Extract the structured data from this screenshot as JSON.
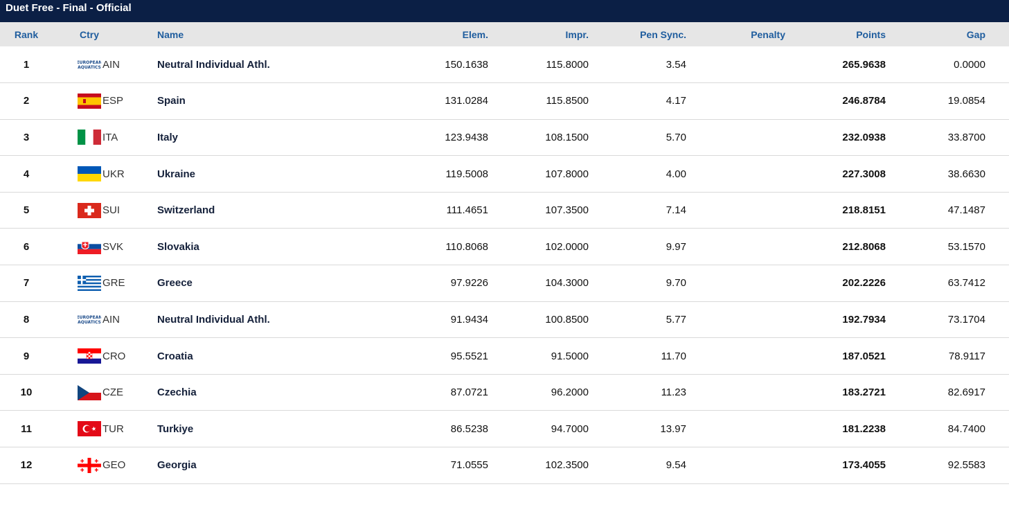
{
  "title": "Duet Free - Final  -  Official",
  "columns": {
    "rank": "Rank",
    "ctry": "Ctry",
    "name": "Name",
    "elem": "Elem.",
    "impr": "Impr.",
    "pen_sync": "Pen Sync.",
    "penalty": "Penalty",
    "points": "Points",
    "gap": "Gap"
  },
  "flag_colors": {
    "AIN": "#ffffff",
    "ESP": "#c60b1e",
    "ITA": "#009246",
    "UKR": "#0057b7",
    "SUI": "#da291c",
    "SVK": "#0b4ea2",
    "GRE": "#0d5eaf",
    "CRO": "#ff0000",
    "CZE": "#11457e",
    "TUR": "#e30a17",
    "GEO": "#ff0000"
  },
  "rows": [
    {
      "rank": "1",
      "code": "AIN",
      "flag_icon": "ain-logo-icon",
      "ain_logo_text": "EUROPEAN AQUATICS",
      "name": "Neutral Individual Athl.",
      "elem": "150.1638",
      "impr": "115.8000",
      "pen_sync": "3.54",
      "penalty": "",
      "points": "265.9638",
      "gap": "0.0000"
    },
    {
      "rank": "2",
      "code": "ESP",
      "flag_icon": "spain-flag-icon",
      "name": "Spain",
      "elem": "131.0284",
      "impr": "115.8500",
      "pen_sync": "4.17",
      "penalty": "",
      "points": "246.8784",
      "gap": "19.0854"
    },
    {
      "rank": "3",
      "code": "ITA",
      "flag_icon": "italy-flag-icon",
      "name": "Italy",
      "elem": "123.9438",
      "impr": "108.1500",
      "pen_sync": "5.70",
      "penalty": "",
      "points": "232.0938",
      "gap": "33.8700"
    },
    {
      "rank": "4",
      "code": "UKR",
      "flag_icon": "ukraine-flag-icon",
      "name": "Ukraine",
      "elem": "119.5008",
      "impr": "107.8000",
      "pen_sync": "4.00",
      "penalty": "",
      "points": "227.3008",
      "gap": "38.6630"
    },
    {
      "rank": "5",
      "code": "SUI",
      "flag_icon": "switzerland-flag-icon",
      "name": "Switzerland",
      "elem": "111.4651",
      "impr": "107.3500",
      "pen_sync": "7.14",
      "penalty": "",
      "points": "218.8151",
      "gap": "47.1487"
    },
    {
      "rank": "6",
      "code": "SVK",
      "flag_icon": "slovakia-flag-icon",
      "name": "Slovakia",
      "elem": "110.8068",
      "impr": "102.0000",
      "pen_sync": "9.97",
      "penalty": "",
      "points": "212.8068",
      "gap": "53.1570"
    },
    {
      "rank": "7",
      "code": "GRE",
      "flag_icon": "greece-flag-icon",
      "name": "Greece",
      "elem": "97.9226",
      "impr": "104.3000",
      "pen_sync": "9.70",
      "penalty": "",
      "points": "202.2226",
      "gap": "63.7412"
    },
    {
      "rank": "8",
      "code": "AIN",
      "flag_icon": "ain-logo-icon",
      "ain_logo_text": "EUROPEAN AQUATICS",
      "name": "Neutral Individual Athl.",
      "elem": "91.9434",
      "impr": "100.8500",
      "pen_sync": "5.77",
      "penalty": "",
      "points": "192.7934",
      "gap": "73.1704"
    },
    {
      "rank": "9",
      "code": "CRO",
      "flag_icon": "croatia-flag-icon",
      "name": "Croatia",
      "elem": "95.5521",
      "impr": "91.5000",
      "pen_sync": "11.70",
      "penalty": "",
      "points": "187.0521",
      "gap": "78.9117"
    },
    {
      "rank": "10",
      "code": "CZE",
      "flag_icon": "czechia-flag-icon",
      "name": "Czechia",
      "elem": "87.0721",
      "impr": "96.2000",
      "pen_sync": "11.23",
      "penalty": "",
      "points": "183.2721",
      "gap": "82.6917"
    },
    {
      "rank": "11",
      "code": "TUR",
      "flag_icon": "turkiye-flag-icon",
      "name": "Turkiye",
      "elem": "86.5238",
      "impr": "94.7000",
      "pen_sync": "13.97",
      "penalty": "",
      "points": "181.2238",
      "gap": "84.7400"
    },
    {
      "rank": "12",
      "code": "GEO",
      "flag_icon": "georgia-flag-icon",
      "name": "Georgia",
      "elem": "71.0555",
      "impr": "102.3500",
      "pen_sync": "9.54",
      "penalty": "",
      "points": "173.4055",
      "gap": "92.5583"
    }
  ]
}
